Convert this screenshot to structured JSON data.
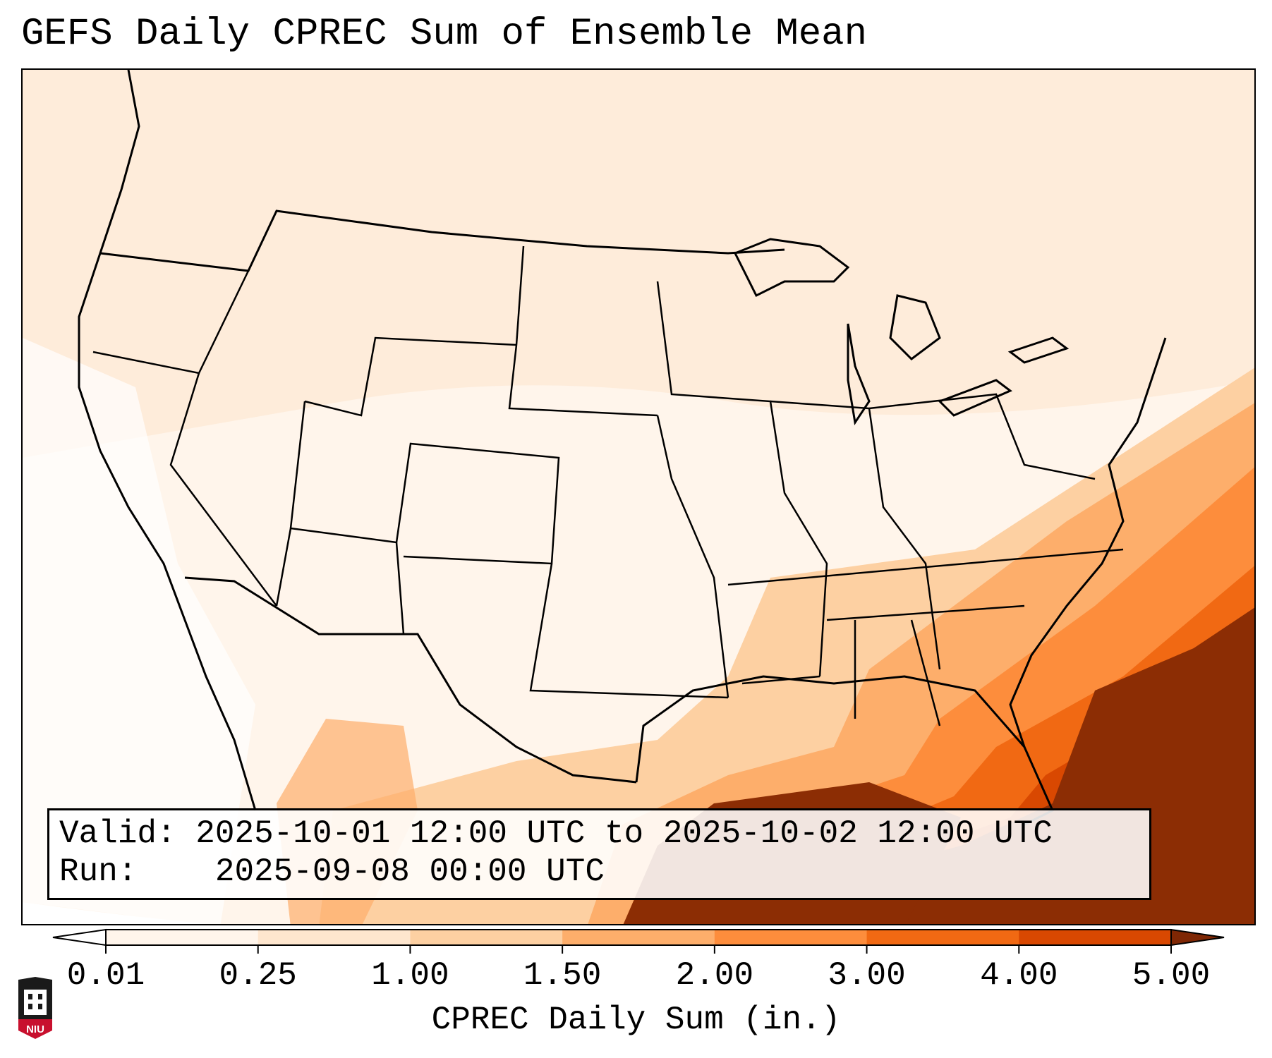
{
  "title": "GEFS Daily CPREC Sum of Ensemble Mean",
  "info": {
    "valid_label": "Valid:",
    "valid_value": "2025-10-01 12:00 UTC to 2025-10-02 12:00 UTC",
    "run_label": "Run:",
    "run_value": "2025-09-08 00:00 UTC"
  },
  "colorbar": {
    "label": "CPREC Daily Sum (in.)",
    "ticks": [
      "0.01",
      "0.25",
      "1.00",
      "1.50",
      "2.00",
      "3.00",
      "4.00",
      "5.00"
    ],
    "colors": [
      "#fff5eb",
      "#fee6ce",
      "#fdd0a2",
      "#fdae6b",
      "#fd8d3c",
      "#f16913",
      "#d94801",
      "#8c2d04"
    ],
    "under_color": "#ffffff",
    "over_color": "#7f2704"
  },
  "logo": {
    "text": "NIU",
    "colors": {
      "red": "#c8102e",
      "black": "#1a1a1a"
    }
  },
  "map": {
    "projection": "Lambert Conformal (CONUS)",
    "features": [
      "state-borders",
      "coastlines",
      "country-borders",
      "great-lakes"
    ]
  }
}
